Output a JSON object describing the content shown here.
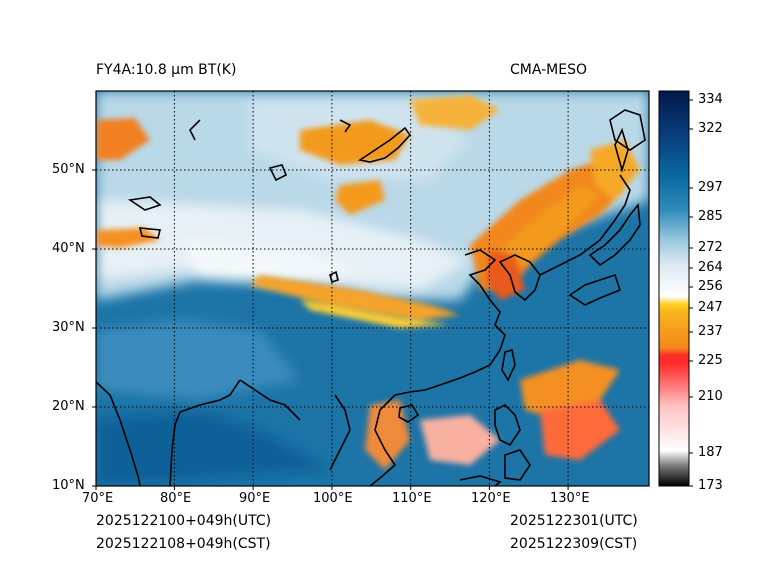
{
  "header": {
    "left_title": "FY4A:10.8 µm BT(K)",
    "right_title": "CMA-MESO"
  },
  "map": {
    "lon_labels": [
      "70°E",
      "80°E",
      "90°E",
      "100°E",
      "110°E",
      "120°E",
      "130°E"
    ],
    "lat_labels": [
      "50°N",
      "40°N",
      "30°N",
      "20°N",
      "10°N"
    ],
    "extent": {
      "lon_min": 70,
      "lon_max": 140,
      "lat_min": 10,
      "lat_max": 60
    }
  },
  "colorbar": {
    "label_values": [
      "334",
      "322",
      "297",
      "285",
      "272",
      "264",
      "256",
      "247",
      "237",
      "225",
      "210",
      "187",
      "173"
    ],
    "range": [
      173,
      334
    ]
  },
  "footer": {
    "init_utc": "2025122100+049h(UTC)",
    "init_cst": "2025122108+049h(CST)",
    "valid_utc": "2025122301(UTC)",
    "valid_cst": "2025122309(CST)"
  }
}
